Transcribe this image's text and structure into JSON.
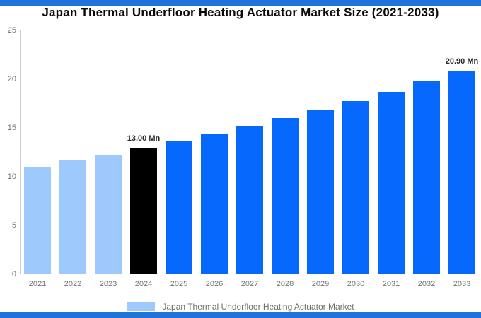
{
  "title": "Japan Thermal Underfloor Heating Actuator Market Size (2021-2033)",
  "legend": {
    "label": "Japan Thermal Underfloor Heating Actuator Market",
    "swatch_color": "#9DC9FC"
  },
  "colors": {
    "accent_strip": "#2173DC",
    "historical_bar": "#9DC9FC",
    "base_year_bar": "#000000",
    "forecast_bar": "#0768FD",
    "axis_line": "#CCCCCC",
    "tick_text": "#757575",
    "data_label_text": "#262626",
    "legend_text": "#6E6E6E",
    "title_text": "#0B0B0B"
  },
  "chart_data": {
    "type": "bar",
    "title": "Japan Thermal Underfloor Heating Actuator Market Size (2021-2033)",
    "unit": "Mn",
    "categories": [
      "2021",
      "2022",
      "2023",
      "2024",
      "2025",
      "2026",
      "2027",
      "2028",
      "2029",
      "2030",
      "2031",
      "2032",
      "2033"
    ],
    "values": [
      11.05,
      11.65,
      12.25,
      13.0,
      13.65,
      14.4,
      15.2,
      16.0,
      16.85,
      17.75,
      18.7,
      19.75,
      20.9
    ],
    "bar_roles": [
      "historical",
      "historical",
      "historical",
      "base_year",
      "forecast",
      "forecast",
      "forecast",
      "forecast",
      "forecast",
      "forecast",
      "forecast",
      "forecast",
      "forecast"
    ],
    "data_labels": [
      null,
      null,
      null,
      "13.00 Mn",
      null,
      null,
      null,
      null,
      null,
      null,
      null,
      null,
      "20.90 Mn"
    ],
    "xlabel": "",
    "ylabel": "",
    "ylim": [
      0,
      25
    ],
    "y_ticks": [
      0,
      5,
      10,
      15,
      20,
      25
    ],
    "grid": false,
    "legend_position": "bottom",
    "legend_entries": [
      "Japan Thermal Underfloor Heating Actuator Market"
    ]
  }
}
